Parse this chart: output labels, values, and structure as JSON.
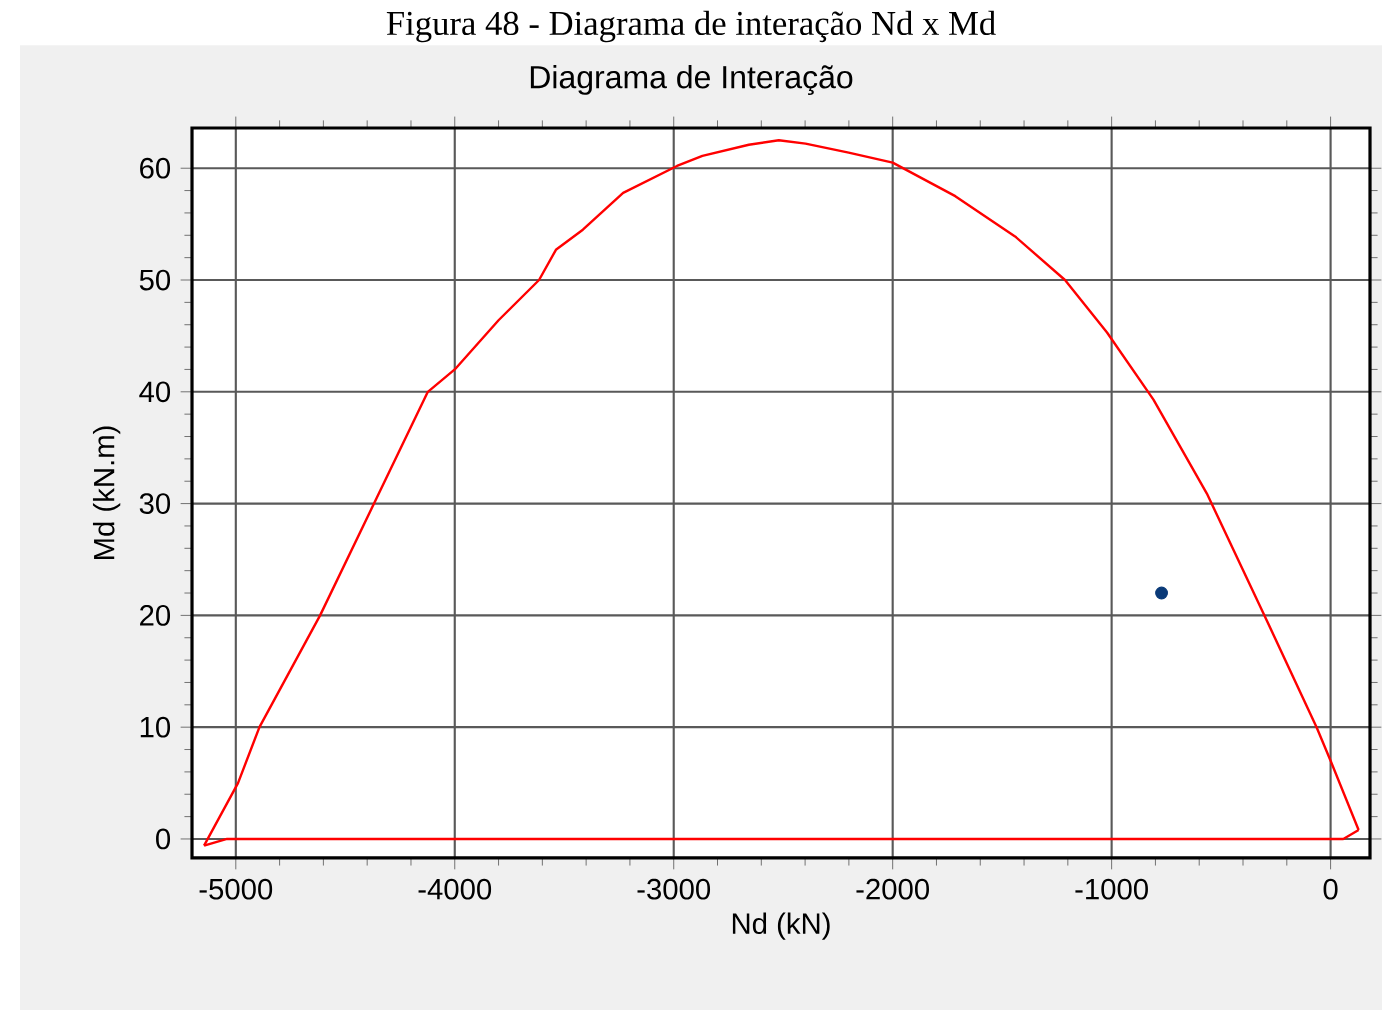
{
  "chart_data": {
    "type": "line",
    "title": "Diagrama de Interação",
    "xlabel": "Nd (kN)",
    "ylabel": "Md (kN.m)",
    "annotations": [
      "Figura 48 - Diagrama de interação Nd x Md"
    ],
    "xlim": [
      -5200,
      180
    ],
    "ylim": [
      -1.7,
      63.6
    ],
    "xticks": [
      -5000,
      -4000,
      -3000,
      -2000,
      -1000,
      0
    ],
    "yticks": [
      0,
      10,
      20,
      30,
      40,
      50,
      60
    ],
    "grid": true,
    "marker": "none",
    "series": [
      {
        "color": "#ff0000",
        "x": [
          -5145,
          -4990,
          -4892,
          -4615,
          -4369,
          -4123,
          -4000,
          -3800,
          -3615,
          -3538,
          -3415,
          -3231,
          -2985,
          -2869,
          -2657,
          -2520,
          -2398,
          -2201,
          -2000,
          -1714,
          -1441,
          -1213,
          -1021,
          -809,
          -565,
          -307,
          -64,
          0,
          128
        ],
        "values": [
          -0.6,
          5,
          10,
          20,
          30,
          40,
          42,
          46.4,
          50,
          52.7,
          54.5,
          57.8,
          60.2,
          61.1,
          62.1,
          62.5,
          62.2,
          61.4,
          60.5,
          57.5,
          53.9,
          50,
          45.3,
          39.3,
          30.9,
          20.2,
          10,
          7,
          0.8
        ]
      },
      {
        "color": "#ff0000",
        "x": [
          -5145,
          -5040,
          58,
          128
        ],
        "values": [
          -0.6,
          0,
          0,
          0.8
        ]
      },
      {
        "type": "scatter",
        "color": "#0a3a78",
        "marker": "circle",
        "x": [
          -772
        ],
        "values": [
          22.0
        ]
      }
    ]
  }
}
